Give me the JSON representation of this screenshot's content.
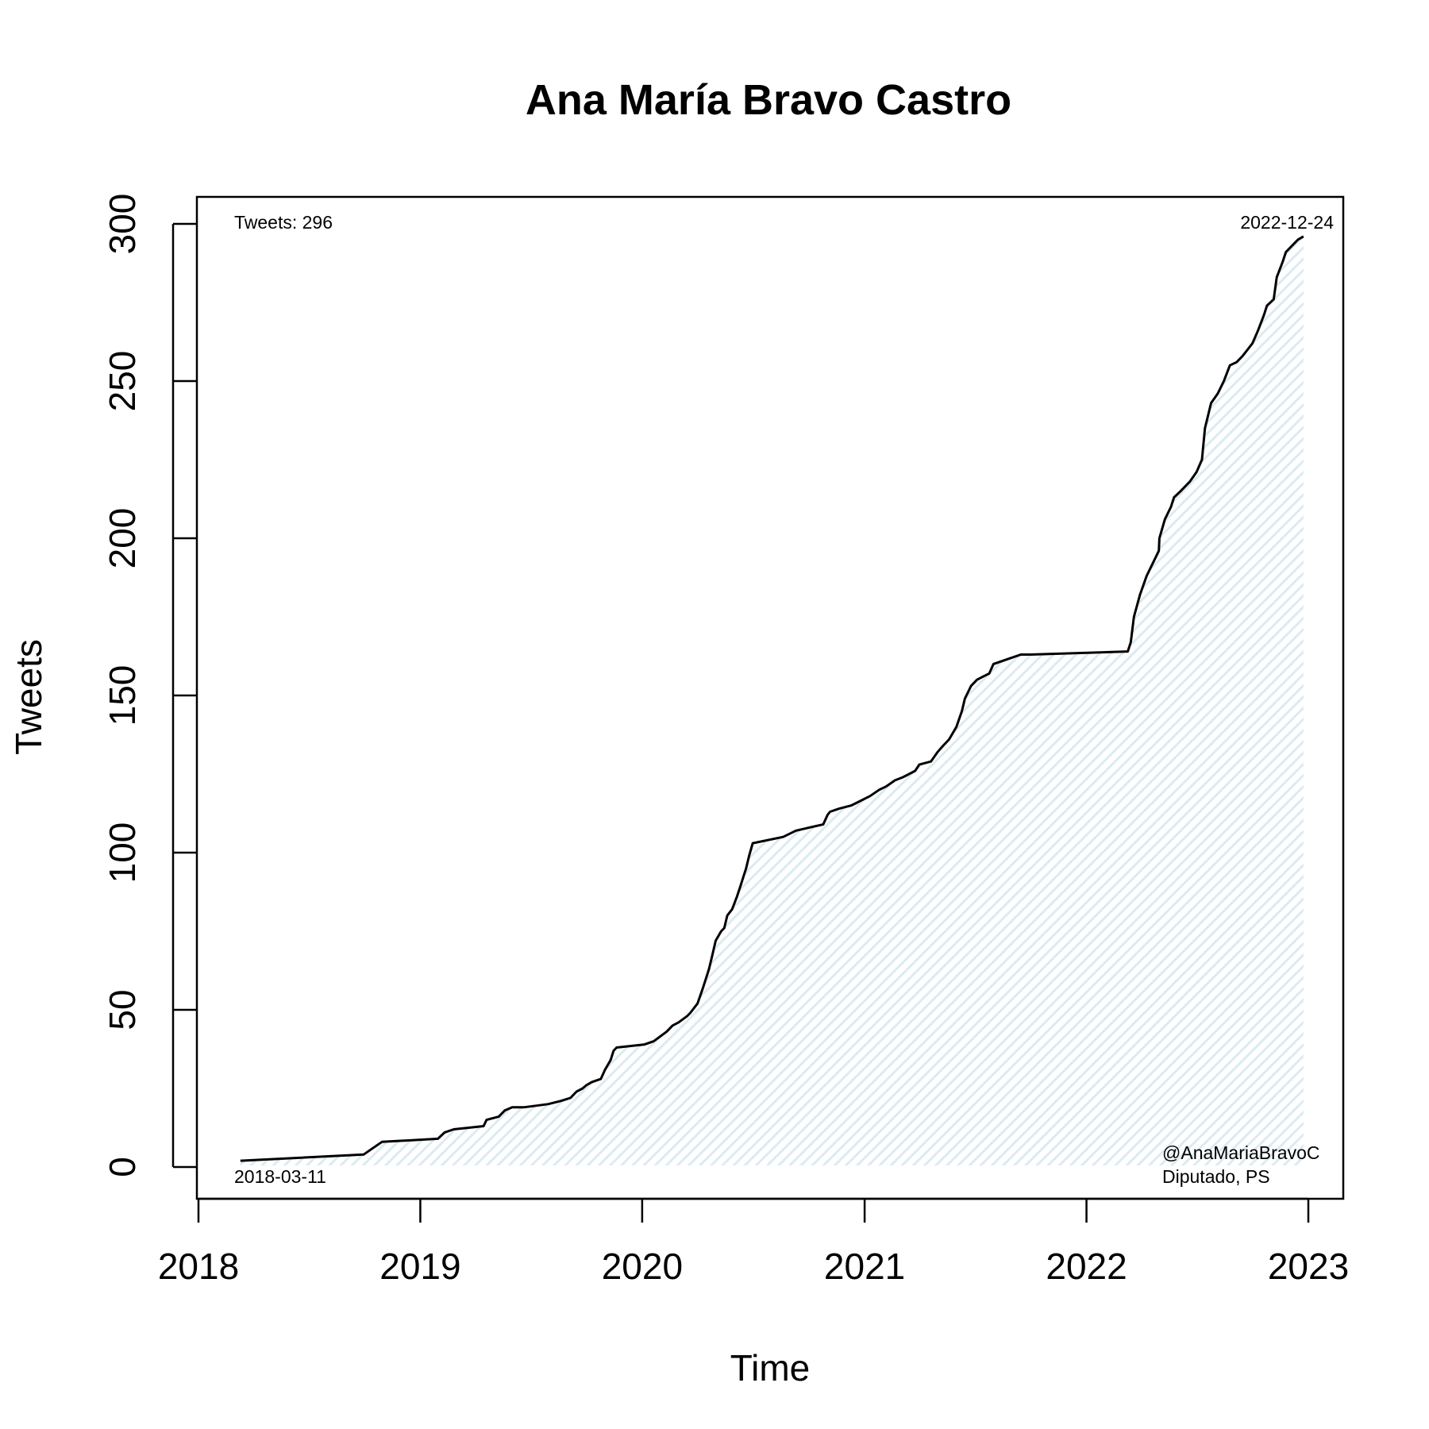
{
  "chart_data": {
    "type": "area",
    "title": "Ana María Bravo Castro",
    "xlabel": "Time",
    "ylabel": "Tweets",
    "x_ticks": [
      "2018",
      "2019",
      "2020",
      "2021",
      "2022",
      "2023"
    ],
    "y_ticks": [
      "0",
      "50",
      "100",
      "150",
      "200",
      "250",
      "300"
    ],
    "xlim": [
      "2018-01-01",
      "2023-01-01"
    ],
    "ylim": [
      -10,
      308
    ],
    "grid": false,
    "fill_color": "#e8f1f5",
    "line_color": "#000000",
    "annotations": {
      "total": "Tweets: 296",
      "start_date": "2018-03-11",
      "end_date": "2022-12-24",
      "handle": "@AnaMariaBravoC",
      "role": "Diputado, PS"
    },
    "series": [
      {
        "x": [
          "2018-03-11",
          "2018-09-30",
          "2018-10-15",
          "2018-10-30",
          "2019-01-30",
          "2019-02-10",
          "2019-02-25",
          "2019-04-15",
          "2019-04-20",
          "2019-05-10",
          "2019-05-20",
          "2019-06-01",
          "2019-06-20",
          "2019-07-30",
          "2019-08-20",
          "2019-09-05",
          "2019-09-15",
          "2019-09-25",
          "2019-10-01",
          "2019-10-10",
          "2019-10-25",
          "2019-11-01",
          "2019-11-10",
          "2019-11-15",
          "2019-11-20",
          "2020-01-05",
          "2020-01-20",
          "2020-02-10",
          "2020-02-20",
          "2020-03-01",
          "2020-03-15",
          "2020-03-20",
          "2020-04-01",
          "2020-04-10",
          "2020-04-20",
          "2020-04-25",
          "2020-05-01",
          "2020-05-10",
          "2020-05-15",
          "2020-05-20",
          "2020-05-28",
          "2020-06-05",
          "2020-06-10",
          "2020-06-15",
          "2020-06-20",
          "2020-06-25",
          "2020-07-01",
          "2020-08-20",
          "2020-09-10",
          "2020-10-25",
          "2020-11-01",
          "2020-11-05",
          "2020-11-20",
          "2020-12-10",
          "2021-01-10",
          "2021-01-25",
          "2021-02-05",
          "2021-02-20",
          "2021-03-05",
          "2021-03-25",
          "2021-04-01",
          "2021-04-20",
          "2021-05-01",
          "2021-05-10",
          "2021-05-20",
          "2021-06-01",
          "2021-06-10",
          "2021-06-15",
          "2021-06-25",
          "2021-07-05",
          "2021-07-15",
          "2021-07-25",
          "2021-08-01",
          "2021-09-15",
          "2021-09-20",
          "2021-10-01",
          "2022-03-10",
          "2022-03-15",
          "2022-03-20",
          "2022-03-30",
          "2022-04-10",
          "2022-04-20",
          "2022-04-30",
          "2022-05-01",
          "2022-05-10",
          "2022-05-20",
          "2022-05-25",
          "2022-06-05",
          "2022-06-20",
          "2022-07-01",
          "2022-07-10",
          "2022-07-15",
          "2022-07-25",
          "2022-08-05",
          "2022-08-15",
          "2022-08-25",
          "2022-09-05",
          "2022-09-15",
          "2022-10-01",
          "2022-10-10",
          "2022-10-20",
          "2022-10-25",
          "2022-11-05",
          "2022-11-10",
          "2022-11-20",
          "2022-11-25",
          "2022-12-05",
          "2022-12-15",
          "2022-12-24"
        ],
        "y": [
          2,
          4,
          6,
          8,
          9,
          11,
          12,
          13,
          15,
          16,
          18,
          19,
          19,
          20,
          21,
          22,
          24,
          25,
          26,
          27,
          28,
          31,
          34,
          37,
          38,
          39,
          40,
          43,
          45,
          46,
          48,
          49,
          52,
          57,
          63,
          67,
          72,
          75,
          76,
          80,
          82,
          86,
          89,
          92,
          95,
          99,
          103,
          105,
          107,
          109,
          112,
          113,
          114,
          115,
          118,
          120,
          121,
          123,
          124,
          126,
          128,
          129,
          132,
          134,
          136,
          140,
          145,
          149,
          153,
          155,
          156,
          157,
          160,
          163,
          163,
          163,
          164,
          167,
          175,
          182,
          188,
          192,
          196,
          200,
          206,
          210,
          213,
          215,
          218,
          221,
          225,
          235,
          243,
          246,
          250,
          255,
          256,
          258,
          262,
          266,
          271,
          274,
          276,
          283,
          288,
          291,
          293,
          295,
          296
        ]
      }
    ]
  }
}
